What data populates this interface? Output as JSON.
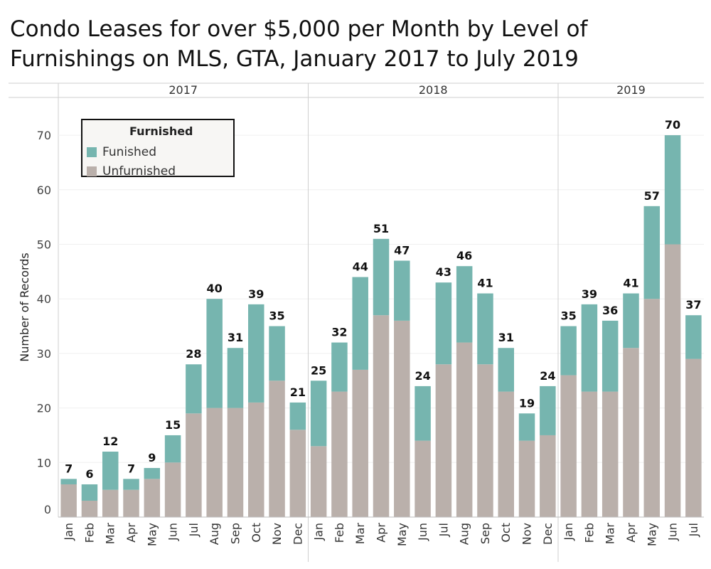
{
  "colors": {
    "furnished": "#76b5af",
    "unfurnished": "#bab0ab"
  },
  "chart_data": {
    "type": "bar",
    "stacked": true,
    "title": "Condo Leases for over $5,000 per Month by Level of Furnishings on MLS, GTA, January 2017 to July 2019",
    "ylabel": "Number of Records",
    "xlabel": "",
    "ylim": [
      0,
      76
    ],
    "yticks": [
      0,
      10,
      20,
      30,
      40,
      50,
      60,
      70
    ],
    "grid": true,
    "legend": {
      "title": "Furnished",
      "placement": "top-left"
    },
    "groups": [
      {
        "label": "2017",
        "categories": [
          "Jan",
          "Feb",
          "Mar",
          "Apr",
          "May",
          "Jun",
          "Jul",
          "Aug",
          "Sep",
          "Oct",
          "Nov",
          "Dec"
        ]
      },
      {
        "label": "2018",
        "categories": [
          "Jan",
          "Feb",
          "Mar",
          "Apr",
          "May",
          "Jun",
          "Jul",
          "Aug",
          "Sep",
          "Oct",
          "Nov",
          "Dec"
        ]
      },
      {
        "label": "2019",
        "categories": [
          "Jan",
          "Feb",
          "Mar",
          "Apr",
          "May",
          "Jun",
          "Jul"
        ]
      }
    ],
    "series": [
      {
        "name": "Unfurnished",
        "values": [
          6,
          3,
          5,
          5,
          7,
          10,
          19,
          20,
          20,
          21,
          25,
          16,
          13,
          23,
          27,
          37,
          36,
          14,
          28,
          32,
          28,
          23,
          14,
          15,
          26,
          23,
          23,
          31,
          40,
          50,
          29
        ]
      },
      {
        "name": "Funished",
        "values": [
          1,
          3,
          7,
          2,
          2,
          5,
          9,
          20,
          11,
          18,
          10,
          5,
          12,
          9,
          17,
          14,
          11,
          10,
          15,
          14,
          13,
          8,
          5,
          9,
          9,
          16,
          13,
          10,
          17,
          20,
          8
        ]
      }
    ],
    "totals": [
      7,
      6,
      12,
      7,
      9,
      15,
      28,
      40,
      31,
      39,
      35,
      21,
      25,
      32,
      44,
      51,
      47,
      24,
      43,
      46,
      41,
      31,
      19,
      24,
      35,
      39,
      36,
      41,
      57,
      70,
      37
    ]
  }
}
